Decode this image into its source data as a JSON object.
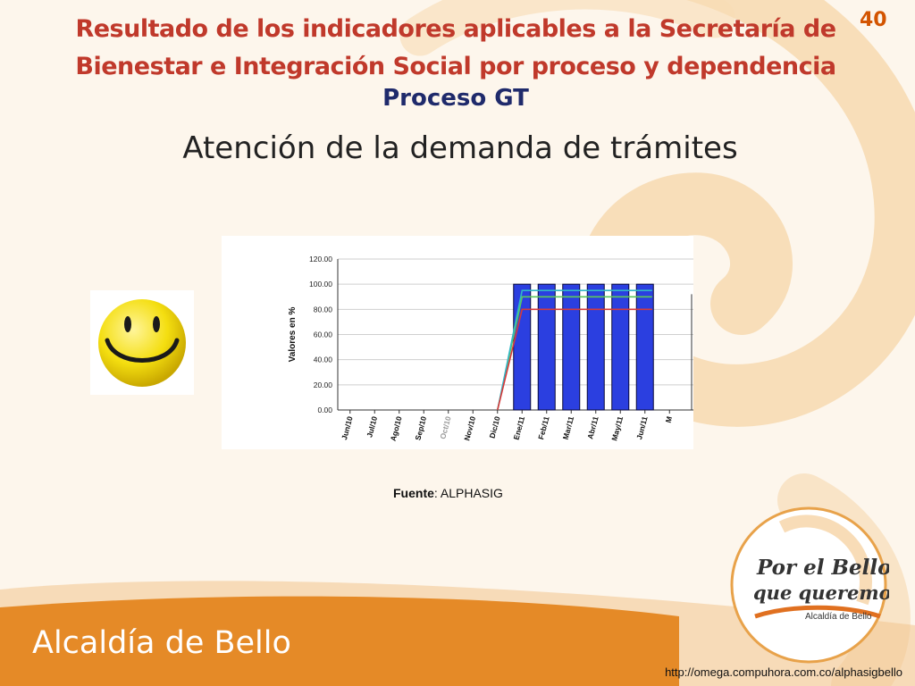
{
  "slide": {
    "title": "Resultado de los indicadores aplicables a la Secretaría de Bienestar e Integración Social por proceso y dependencia",
    "subtitle": "Proceso GT",
    "page_number": "40",
    "heading": "Atención de la demanda de trámites",
    "source_label": "Fuente",
    "source_value": ": ALPHASIG",
    "logo_line1": "Por el Bello",
    "logo_line2": "que queremos",
    "logo_caption": "Alcaldía de Bello",
    "brand": "Alcaldía de Bello",
    "url": "http://omega.compuhora.com.co/alphasigbello"
  },
  "colors": {
    "title": "#c0392b",
    "subtitle": "#1f2a6b",
    "page_number": "#d35400",
    "bar": "#2b3fe0",
    "line_green": "#5cc85c",
    "line_cyan": "#31b7c7",
    "line_red": "#d63a3a"
  },
  "icons": {
    "status": "smiley-face-icon"
  },
  "chart_data": {
    "type": "bar",
    "ylabel": "Valores en %",
    "xlabel": "",
    "ylim": [
      0,
      120
    ],
    "yticks": [
      "0.00",
      "20.00",
      "40.00",
      "60.00",
      "80.00",
      "100.00",
      "120.00"
    ],
    "categories": [
      "Jun/10",
      "Jul/10",
      "Ago/10",
      "Sep/10",
      "Oct/10",
      "Nov/10",
      "Dic/10",
      "Ene/11",
      "Feb/11",
      "Mar/11",
      "Abr/11",
      "May/11",
      "Jun/11",
      "M"
    ],
    "grey_categories": [
      "Oct/10"
    ],
    "series": [
      {
        "kind": "bar",
        "color": "#2b3fe0",
        "values": [
          0,
          0,
          0,
          0,
          0,
          0,
          0,
          100,
          100,
          100,
          100,
          100,
          100,
          0
        ]
      },
      {
        "kind": "line",
        "color": "#5cc85c",
        "values": [
          null,
          null,
          null,
          null,
          null,
          null,
          0,
          90,
          90,
          90,
          90,
          90,
          90,
          null
        ]
      },
      {
        "kind": "line",
        "color": "#31b7c7",
        "values": [
          null,
          null,
          null,
          null,
          null,
          null,
          0,
          95,
          95,
          95,
          95,
          95,
          95,
          null
        ]
      },
      {
        "kind": "line",
        "color": "#d63a3a",
        "values": [
          null,
          null,
          null,
          null,
          null,
          null,
          0,
          80,
          80,
          80,
          80,
          80,
          80,
          null
        ]
      }
    ],
    "grid": true,
    "legend": "none"
  }
}
